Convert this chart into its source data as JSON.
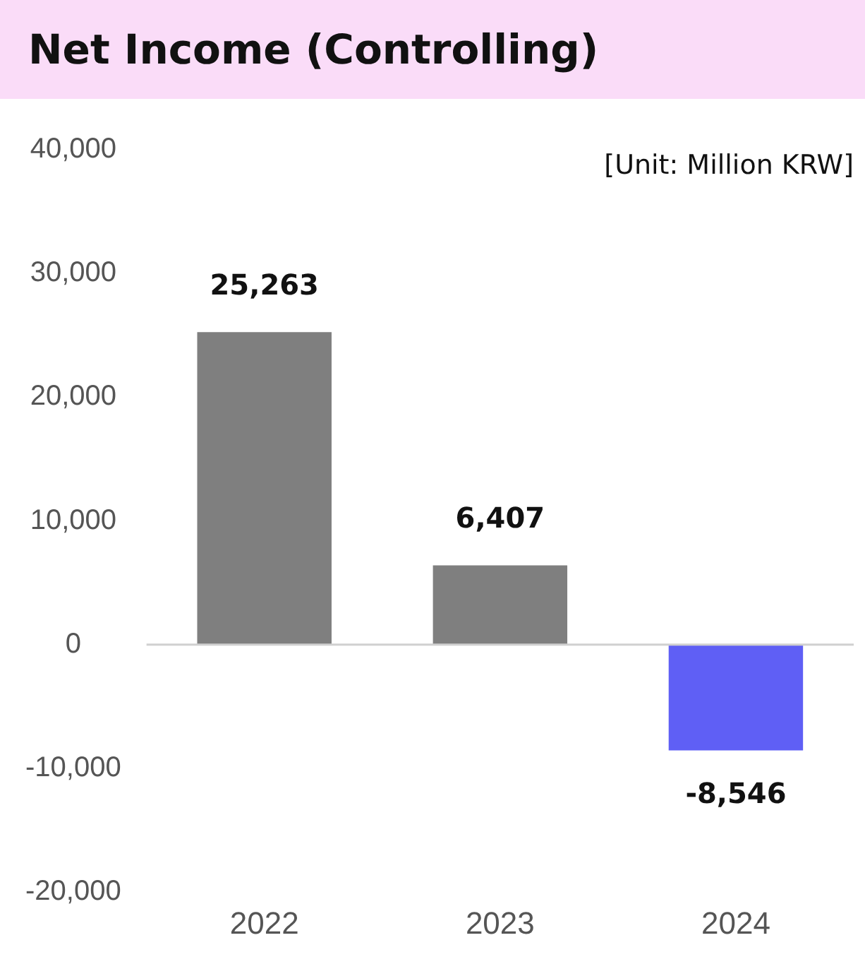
{
  "chart_data": {
    "type": "bar",
    "title": "Net Income (Controlling)",
    "annotations": [
      "[Unit: Million KRW]"
    ],
    "categories": [
      "2022",
      "2023",
      "2024"
    ],
    "values": [
      25263,
      6407,
      -8546
    ],
    "colors": [
      "#7f7f7f",
      "#7f7f7f",
      "#5f5ff5"
    ],
    "value_labels": [
      "25,263",
      "6,407",
      "-8,546"
    ],
    "ref_lines": [
      {
        "axis": "y",
        "value": 0,
        "color": "#d0d0d0"
      }
    ],
    "ylim": [
      -20000,
      40000
    ],
    "yticks": [
      {
        "value": -20000,
        "label": "-20,000"
      },
      {
        "value": -10000,
        "label": "-10,000"
      },
      0,
      {
        "value": 10000,
        "label": "10,000"
      },
      {
        "value": 20000,
        "label": "20,000"
      },
      {
        "value": 30000,
        "label": "30,000"
      },
      {
        "value": 40000,
        "label": "40,000"
      }
    ],
    "grid": false,
    "legend": false
  }
}
